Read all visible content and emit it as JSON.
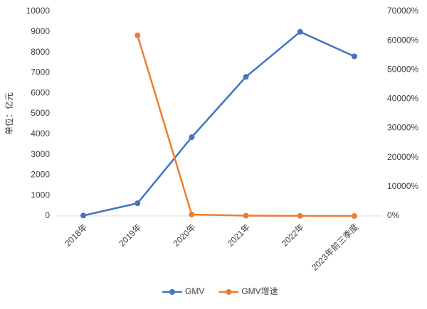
{
  "chart_data": {
    "type": "line",
    "ylabel": "单位：亿元",
    "categories": [
      "2018年",
      "2019年",
      "2020年",
      "2021年",
      "2022年",
      "2023年前三季度"
    ],
    "series": [
      {
        "name": "GMV",
        "color": "#4472c4",
        "values": [
          20,
          620,
          3850,
          6800,
          9000,
          7800
        ]
      },
      {
        "name": "GMV增速",
        "color": "#ed7d31",
        "axis": "y2",
        "values": [
          null,
          61800,
          500,
          80,
          30,
          0
        ]
      }
    ],
    "ylim": [
      0,
      10000
    ],
    "yticks": [
      0,
      1000,
      2000,
      3000,
      4000,
      5000,
      6000,
      7000,
      8000,
      9000,
      10000
    ],
    "y2lim": [
      0,
      70000
    ],
    "y2ticks": [
      {
        "value": 0,
        "label": "0%"
      },
      {
        "value": 10000,
        "label": "10000%"
      },
      {
        "value": 20000,
        "label": "20000%"
      },
      {
        "value": 30000,
        "label": "30000%"
      },
      {
        "value": 40000,
        "label": "40000%"
      },
      {
        "value": 50000,
        "label": "50000%"
      },
      {
        "value": 60000,
        "label": "60000%"
      },
      {
        "value": 70000,
        "label": "70000%"
      }
    ],
    "grid": false,
    "legend": "bottom"
  }
}
